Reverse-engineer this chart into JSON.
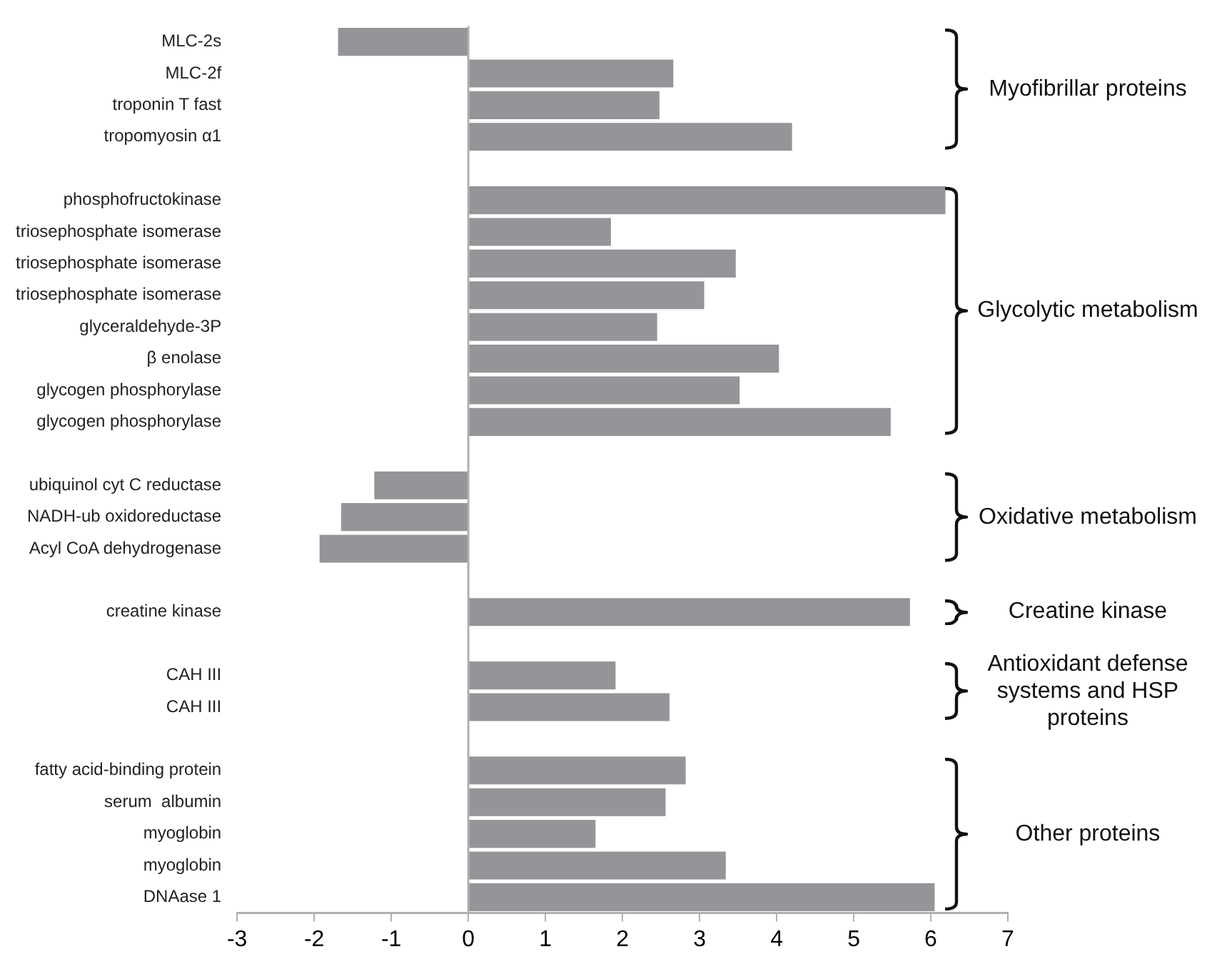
{
  "chart_data": {
    "type": "bar",
    "orientation": "horizontal",
    "color": "#939598",
    "categories": [
      "MLC-2s",
      "MLC-2f",
      "troponin T fast",
      "tropomyosin α1",
      null,
      "phosphofructokinase",
      "triosephosphate isomerase",
      "triosephosphate isomerase",
      "triosephosphate isomerase",
      "glyceraldehyde-3P",
      "β enolase",
      "glycogen phosphorylase",
      "glycogen phosphorylase",
      null,
      "ubiquinol cyt C reductase",
      "NADH-ub oxidoreductase",
      "Acyl CoA dehydrogenase",
      null,
      "creatine kinase",
      null,
      "CAH III",
      "CAH III",
      null,
      "fatty acid-binding protein",
      "serum  albumin",
      "myoglobin",
      "myoglobin",
      "DNAase 1"
    ],
    "values": [
      -1.69,
      2.66,
      2.48,
      4.2,
      null,
      6.19,
      1.85,
      3.47,
      3.06,
      2.45,
      4.03,
      3.52,
      5.48,
      null,
      -1.22,
      -1.65,
      -1.93,
      null,
      5.73,
      null,
      1.91,
      2.61,
      null,
      2.82,
      2.56,
      1.65,
      3.34,
      6.05
    ],
    "xlim": [
      -3,
      7
    ],
    "xticks": [
      -3,
      -2,
      -1,
      0,
      1,
      2,
      3,
      4,
      5,
      6,
      7
    ],
    "annotations": [
      "Myofibrillar proteins",
      "Glycolytic metabolism",
      "Oxidative metabolism",
      "Creatine kinase",
      "Antioxidant defense systems and HSP proteins",
      "Other proteins"
    ]
  }
}
